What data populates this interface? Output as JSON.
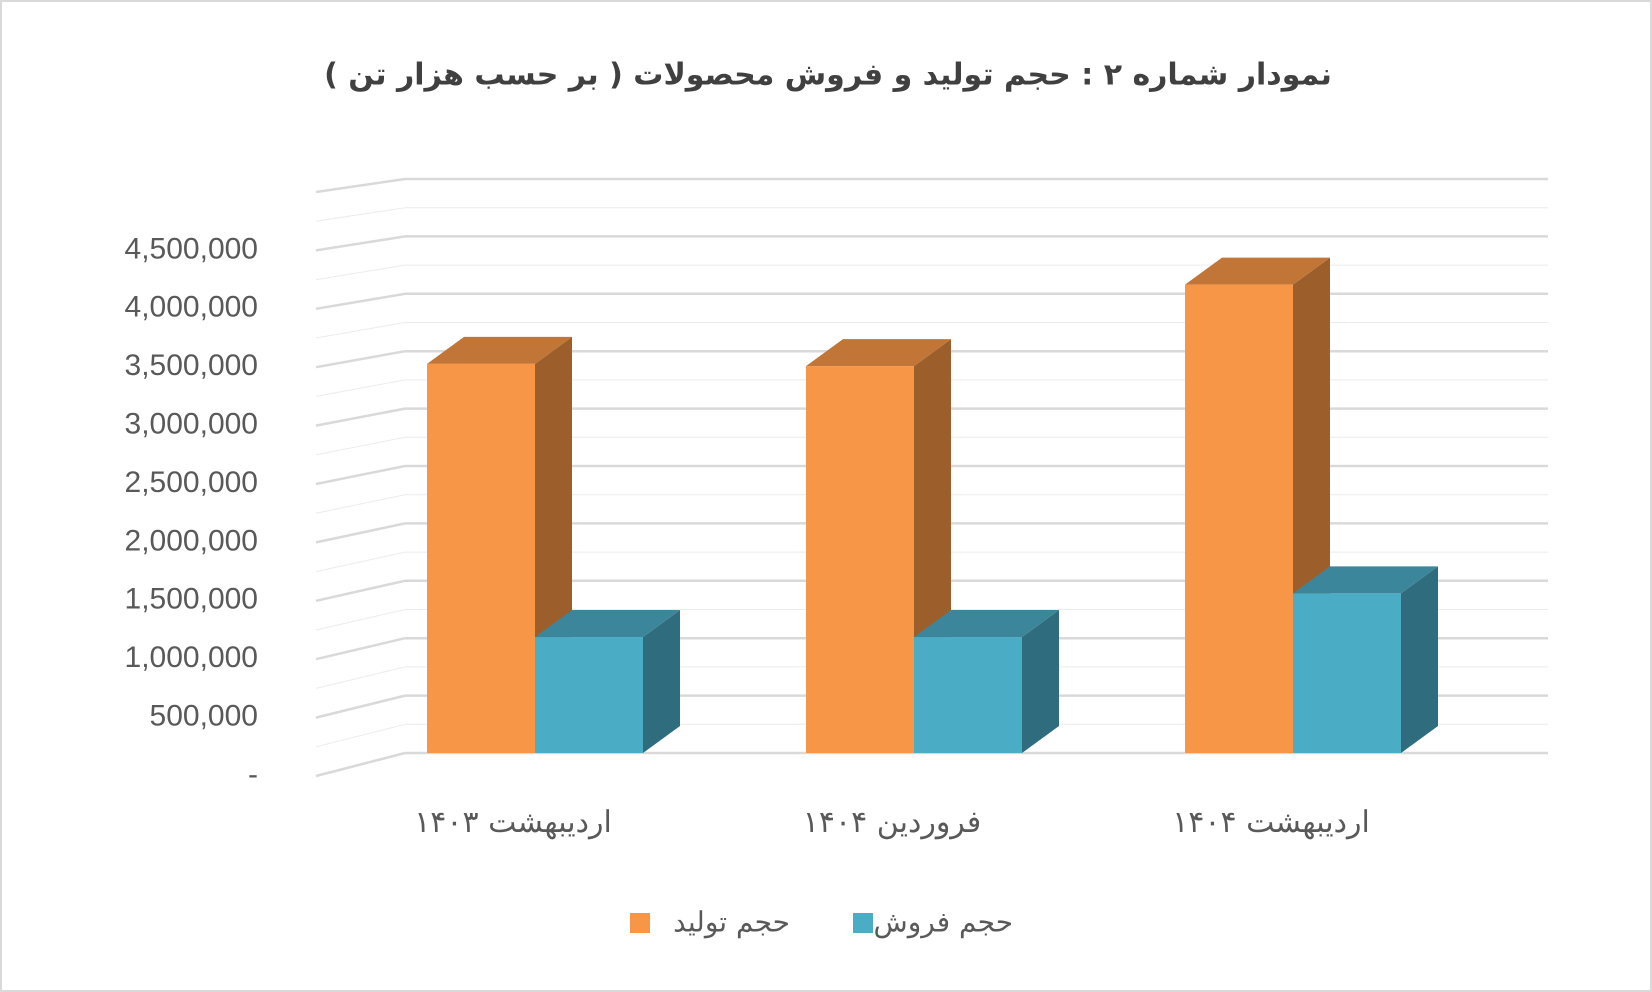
{
  "chart_data": {
    "type": "bar3d",
    "title": "نمودار شماره ۲ : حجم تولید و فروش محصولات ( بر حسب هزار تن )",
    "categories": [
      "اردیبهشت ۱۴۰۳",
      "فروردین ۱۴۰۴",
      "اردیبهشت ۱۴۰۴"
    ],
    "series": [
      {
        "name": "حجم تولید",
        "color": "#f79646",
        "values": [
          3390000,
          3370000,
          4080000
        ]
      },
      {
        "name": "حجم فروش",
        "color": "#4bacc6",
        "values": [
          1010000,
          1010000,
          1390000
        ]
      }
    ],
    "ylim": [
      0,
      5000000
    ],
    "yticks": [
      {
        "value": 0,
        "label": "-"
      },
      {
        "value": 500000,
        "label": "500,000"
      },
      {
        "value": 1000000,
        "label": "1,000,000"
      },
      {
        "value": 1500000,
        "label": "1,500,000"
      },
      {
        "value": 2000000,
        "label": "2,000,000"
      },
      {
        "value": 2500000,
        "label": "2,500,000"
      },
      {
        "value": 3000000,
        "label": "3,000,000"
      },
      {
        "value": 3500000,
        "label": "3,500,000"
      },
      {
        "value": 4000000,
        "label": "4,000,000"
      },
      {
        "value": 4500000,
        "label": "4,500,000"
      }
    ],
    "grid": true
  }
}
